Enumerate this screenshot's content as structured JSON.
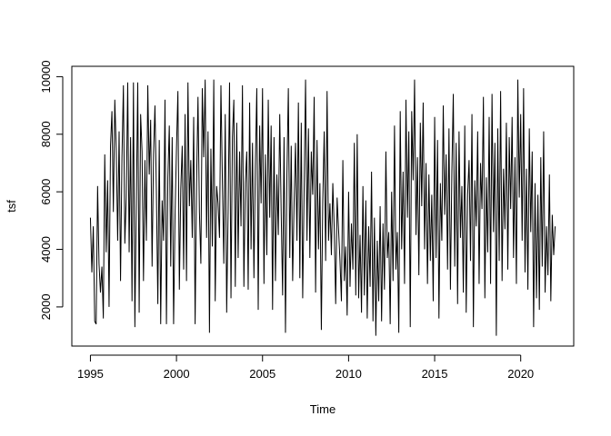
{
  "chart_data": {
    "type": "line",
    "xlabel": "Time",
    "ylabel": "tsf",
    "color": "#000000",
    "x": [
      1995,
      1995.083,
      1995.167,
      1995.25,
      1995.333,
      1995.417,
      1995.5,
      1995.583,
      1995.667,
      1995.75,
      1995.833,
      1995.917,
      1996,
      1996.083,
      1996.167,
      1996.25,
      1996.333,
      1996.417,
      1996.5,
      1996.583,
      1996.667,
      1996.75,
      1996.833,
      1996.917,
      1997,
      1997.083,
      1997.167,
      1997.25,
      1997.333,
      1997.417,
      1997.5,
      1997.583,
      1997.667,
      1997.75,
      1997.833,
      1997.917,
      1998,
      1998.083,
      1998.167,
      1998.25,
      1998.333,
      1998.417,
      1998.5,
      1998.583,
      1998.667,
      1998.75,
      1998.833,
      1998.917,
      1999,
      1999.083,
      1999.167,
      1999.25,
      1999.333,
      1999.417,
      1999.5,
      1999.583,
      1999.667,
      1999.75,
      1999.833,
      1999.917,
      2000,
      2000.083,
      2000.167,
      2000.25,
      2000.333,
      2000.417,
      2000.5,
      2000.583,
      2000.667,
      2000.75,
      2000.833,
      2000.917,
      2001,
      2001.083,
      2001.167,
      2001.25,
      2001.333,
      2001.417,
      2001.5,
      2001.583,
      2001.667,
      2001.75,
      2001.833,
      2001.917,
      2002,
      2002.083,
      2002.167,
      2002.25,
      2002.333,
      2002.417,
      2002.5,
      2002.583,
      2002.667,
      2002.75,
      2002.833,
      2002.917,
      2003,
      2003.083,
      2003.167,
      2003.25,
      2003.333,
      2003.417,
      2003.5,
      2003.583,
      2003.667,
      2003.75,
      2003.833,
      2003.917,
      2004,
      2004.083,
      2004.167,
      2004.25,
      2004.333,
      2004.417,
      2004.5,
      2004.583,
      2004.667,
      2004.75,
      2004.833,
      2004.917,
      2005,
      2005.083,
      2005.167,
      2005.25,
      2005.333,
      2005.417,
      2005.5,
      2005.583,
      2005.667,
      2005.75,
      2005.833,
      2005.917,
      2006,
      2006.083,
      2006.167,
      2006.25,
      2006.333,
      2006.417,
      2006.5,
      2006.583,
      2006.667,
      2006.75,
      2006.833,
      2006.917,
      2007,
      2007.083,
      2007.167,
      2007.25,
      2007.333,
      2007.417,
      2007.5,
      2007.583,
      2007.667,
      2007.75,
      2007.833,
      2007.917,
      2008,
      2008.083,
      2008.167,
      2008.25,
      2008.333,
      2008.417,
      2008.5,
      2008.583,
      2008.667,
      2008.75,
      2008.833,
      2008.917,
      2009,
      2009.083,
      2009.167,
      2009.25,
      2009.333,
      2009.417,
      2009.5,
      2009.583,
      2009.667,
      2009.75,
      2009.833,
      2009.917,
      2010,
      2010.083,
      2010.167,
      2010.25,
      2010.333,
      2010.417,
      2010.5,
      2010.583,
      2010.667,
      2010.75,
      2010.833,
      2010.917,
      2011,
      2011.083,
      2011.167,
      2011.25,
      2011.333,
      2011.417,
      2011.5,
      2011.583,
      2011.667,
      2011.75,
      2011.833,
      2011.917,
      2012,
      2012.083,
      2012.167,
      2012.25,
      2012.333,
      2012.417,
      2012.5,
      2012.583,
      2012.667,
      2012.75,
      2012.833,
      2012.917,
      2013,
      2013.083,
      2013.167,
      2013.25,
      2013.333,
      2013.417,
      2013.5,
      2013.583,
      2013.667,
      2013.75,
      2013.833,
      2013.917,
      2014,
      2014.083,
      2014.167,
      2014.25,
      2014.333,
      2014.417,
      2014.5,
      2014.583,
      2014.667,
      2014.75,
      2014.833,
      2014.917,
      2015,
      2015.083,
      2015.167,
      2015.25,
      2015.333,
      2015.417,
      2015.5,
      2015.583,
      2015.667,
      2015.75,
      2015.833,
      2015.917,
      2016,
      2016.083,
      2016.167,
      2016.25,
      2016.333,
      2016.417,
      2016.5,
      2016.583,
      2016.667,
      2016.75,
      2016.833,
      2016.917,
      2017,
      2017.083,
      2017.167,
      2017.25,
      2017.333,
      2017.417,
      2017.5,
      2017.583,
      2017.667,
      2017.75,
      2017.833,
      2017.917,
      2018,
      2018.083,
      2018.167,
      2018.25,
      2018.333,
      2018.417,
      2018.5,
      2018.583,
      2018.667,
      2018.75,
      2018.833,
      2018.917,
      2019,
      2019.083,
      2019.167,
      2019.25,
      2019.333,
      2019.417,
      2019.5,
      2019.583,
      2019.667,
      2019.75,
      2019.833,
      2019.917,
      2020,
      2020.083,
      2020.167,
      2020.25,
      2020.333,
      2020.417,
      2020.5,
      2020.583,
      2020.667,
      2020.75,
      2020.833,
      2020.917,
      2021,
      2021.083,
      2021.167,
      2021.25,
      2021.333,
      2021.417,
      2021.5,
      2021.583,
      2021.667,
      2021.75,
      2021.833,
      2021.917,
      2022
    ],
    "values": [
      5100,
      3200,
      4800,
      1500,
      1400,
      6200,
      3500,
      2500,
      3400,
      1600,
      7300,
      3900,
      6400,
      2000,
      7600,
      8800,
      5300,
      9200,
      7500,
      4300,
      8100,
      2900,
      7200,
      9700,
      4200,
      5800,
      9800,
      3900,
      7900,
      2200,
      9800,
      1300,
      5600,
      9800,
      1800,
      8700,
      7400,
      2900,
      7100,
      4300,
      9700,
      6600,
      8500,
      3400,
      7300,
      9000,
      6000,
      2100,
      7800,
      1400,
      5700,
      4300,
      9200,
      1400,
      6500,
      8300,
      3400,
      7900,
      1400,
      5200,
      7500,
      9500,
      2600,
      6100,
      7600,
      3300,
      8700,
      2900,
      9800,
      5500,
      7100,
      4400,
      8600,
      1400,
      6300,
      9300,
      5300,
      3500,
      9600,
      7200,
      9900,
      4400,
      8100,
      1100,
      7500,
      4100,
      9900,
      2200,
      6200,
      5600,
      4400,
      9700,
      6400,
      3500,
      8700,
      1800,
      5300,
      9800,
      2300,
      7900,
      9200,
      2700,
      8400,
      3700,
      7400,
      4800,
      9700,
      2700,
      6300,
      7400,
      2600,
      9100,
      4000,
      7700,
      3000,
      6900,
      9600,
      1900,
      8300,
      5600,
      9600,
      2800,
      7300,
      3800,
      9200,
      5100,
      8300,
      1900,
      7900,
      2900,
      6600,
      4500,
      8700,
      5300,
      2400,
      7900,
      1100,
      6600,
      9600,
      3700,
      7600,
      2900,
      5600,
      7700,
      4300,
      9100,
      3000,
      8400,
      2300,
      6100,
      9900,
      4300,
      8200,
      3700,
      7400,
      5900,
      9300,
      2500,
      7800,
      4000,
      6300,
      1200,
      5700,
      8100,
      3600,
      9500,
      4300,
      5600,
      3800,
      6300,
      4700,
      2100,
      5800,
      4700,
      3600,
      2200,
      7100,
      2900,
      4100,
      1700,
      6000,
      2700,
      4900,
      3300,
      7700,
      2400,
      8000,
      2300,
      4500,
      1800,
      6200,
      2400,
      5700,
      1600,
      4800,
      2700,
      6700,
      1500,
      5100,
      1000,
      4300,
      2200,
      5500,
      1500,
      4900,
      2600,
      7400,
      3700,
      4600,
      1400,
      6000,
      2900,
      8300,
      3300,
      4600,
      1100,
      8800,
      4000,
      6700,
      2800,
      9200,
      5100,
      8100,
      1300,
      8800,
      6400,
      9900,
      4500,
      7200,
      3100,
      8400,
      5500,
      9100,
      4000,
      7000,
      2800,
      6600,
      3600,
      5900,
      2200,
      8600,
      3700,
      7800,
      1600,
      6300,
      4300,
      9000,
      5200,
      7300,
      3300,
      8200,
      2600,
      6700,
      9400,
      3400,
      7700,
      2100,
      8100,
      4400,
      6200,
      2500,
      8300,
      1800,
      5900,
      7100,
      3600,
      8700,
      1300,
      6400,
      4800,
      8100,
      2800,
      7000,
      5400,
      9300,
      2300,
      6500,
      3900,
      8600,
      2800,
      9400,
      4600,
      7700,
      1000,
      8200,
      3600,
      9500,
      2900,
      6800,
      4700,
      8400,
      3300,
      7900,
      5400,
      8600,
      3700,
      7200,
      2800,
      9900,
      5800,
      8700,
      4300,
      9600,
      3200,
      6800,
      2600,
      8200,
      4600,
      7400,
      1300,
      6300,
      2300,
      5900,
      1900,
      7200,
      3400,
      8100,
      2500,
      4800,
      3100,
      6600,
      2200,
      5200,
      3800,
      4800
    ],
    "xlim": [
      1993.92,
      2023.08
    ],
    "ylim": [
      640,
      10360
    ],
    "xticks": [
      1995,
      2000,
      2005,
      2010,
      2015,
      2020
    ],
    "yticks": [
      2000,
      4000,
      6000,
      8000,
      10000
    ]
  }
}
